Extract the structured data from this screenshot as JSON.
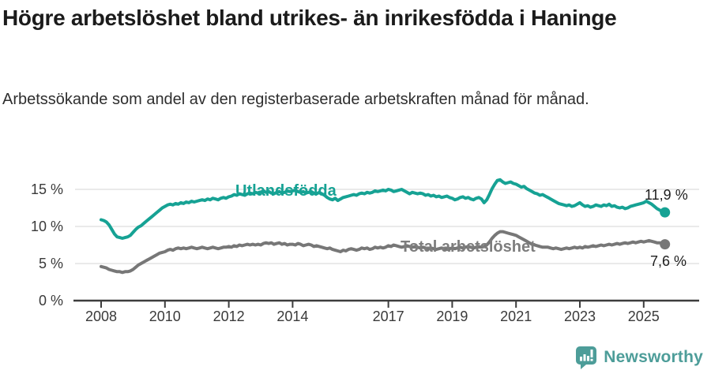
{
  "title": "Högre arbetslöshet bland utrikes- än inrikesfödda i Haninge",
  "subtitle": "Arbetssökande som andel av den registerbaserade arbetskraften månad för månad.",
  "footer": {
    "brand": "Newsworthy"
  },
  "colors": {
    "accent_teal": "#16a294",
    "series_gray": "#777777",
    "brand_teal": "#4d9d99",
    "axis": "#3d3d3d",
    "grid": "#e3e3e3",
    "text_dark": "#1b1b1b"
  },
  "chart_data": {
    "type": "line",
    "title": "Högre arbetslöshet bland utrikes- än inrikesfödda i Haninge",
    "xlabel": "",
    "ylabel": "",
    "x_axis": {
      "start_year": 2008,
      "start_month": 1,
      "frequency": "monthly",
      "last_point": "2025-09",
      "tick_years": [
        2008,
        2010,
        2012,
        2014,
        2017,
        2019,
        2021,
        2023,
        2025
      ]
    },
    "y_axis": {
      "ticks": [
        {
          "value": 0,
          "label": "0 %"
        },
        {
          "value": 5,
          "label": "5 %"
        },
        {
          "value": 10,
          "label": "10 %"
        },
        {
          "value": 15,
          "label": "15 %"
        }
      ],
      "ylim": [
        0,
        17.2
      ],
      "grid": true
    },
    "series": [
      {
        "name": "Utlandsfödda",
        "color": "#16a294",
        "end_label": "11,9 %",
        "end_value": 11.9,
        "values": [
          10.9,
          10.8,
          10.6,
          10.2,
          9.6,
          9.0,
          8.6,
          8.5,
          8.4,
          8.5,
          8.6,
          8.8,
          9.2,
          9.6,
          9.9,
          10.1,
          10.4,
          10.7,
          11.0,
          11.3,
          11.6,
          11.9,
          12.2,
          12.5,
          12.7,
          12.9,
          13.0,
          12.9,
          13.1,
          13.0,
          13.2,
          13.1,
          13.3,
          13.2,
          13.4,
          13.3,
          13.4,
          13.5,
          13.6,
          13.5,
          13.7,
          13.6,
          13.8,
          13.7,
          13.6,
          13.8,
          13.9,
          13.8,
          14.0,
          14.1,
          14.3,
          14.2,
          14.4,
          14.3,
          14.2,
          14.4,
          14.5,
          14.4,
          14.6,
          14.5,
          14.6,
          14.8,
          14.6,
          14.7,
          14.5,
          14.4,
          14.6,
          14.7,
          14.5,
          14.6,
          14.8,
          14.7,
          14.8,
          14.9,
          14.7,
          14.6,
          14.7,
          14.5,
          14.6,
          14.7,
          14.5,
          14.4,
          14.6,
          14.4,
          14.2,
          13.9,
          13.7,
          13.6,
          13.8,
          13.5,
          13.7,
          13.9,
          14.0,
          14.1,
          14.2,
          14.3,
          14.2,
          14.4,
          14.5,
          14.4,
          14.6,
          14.5,
          14.6,
          14.8,
          14.7,
          14.8,
          14.9,
          14.8,
          15.0,
          14.9,
          14.7,
          14.8,
          14.9,
          15.0,
          14.8,
          14.6,
          14.4,
          14.6,
          14.5,
          14.4,
          14.5,
          14.4,
          14.2,
          14.3,
          14.1,
          14.2,
          14.0,
          14.1,
          13.9,
          14.0,
          14.1,
          13.9,
          13.8,
          13.6,
          13.7,
          13.9,
          14.0,
          13.8,
          13.9,
          13.7,
          13.6,
          13.8,
          13.9,
          13.7,
          13.2,
          13.6,
          14.3,
          15.1,
          15.7,
          16.2,
          16.3,
          16.0,
          15.8,
          15.9,
          16.0,
          15.8,
          15.7,
          15.5,
          15.3,
          15.4,
          15.1,
          14.9,
          14.7,
          14.5,
          14.4,
          14.2,
          14.3,
          14.1,
          13.9,
          13.7,
          13.5,
          13.3,
          13.1,
          13.0,
          12.9,
          12.8,
          12.9,
          12.7,
          12.8,
          13.0,
          13.2,
          12.9,
          12.7,
          12.8,
          12.6,
          12.7,
          12.9,
          12.8,
          12.7,
          12.9,
          12.8,
          13.0,
          12.7,
          12.8,
          12.6,
          12.5,
          12.6,
          12.4,
          12.5,
          12.7,
          12.8,
          12.9,
          13.0,
          13.1,
          13.2,
          13.4,
          13.2,
          13.0,
          12.7,
          12.4,
          12.2,
          12.0,
          11.9
        ]
      },
      {
        "name": "Total arbetslöshet",
        "color": "#777777",
        "end_label": "7,6 %",
        "end_value": 7.6,
        "values": [
          4.6,
          4.5,
          4.4,
          4.2,
          4.1,
          4.0,
          3.9,
          3.9,
          3.8,
          3.9,
          3.9,
          4.0,
          4.2,
          4.5,
          4.8,
          5.0,
          5.2,
          5.4,
          5.6,
          5.8,
          6.0,
          6.2,
          6.4,
          6.5,
          6.6,
          6.8,
          6.9,
          6.8,
          7.0,
          7.1,
          7.0,
          7.1,
          7.0,
          7.1,
          7.2,
          7.1,
          7.0,
          7.1,
          7.2,
          7.1,
          7.0,
          7.1,
          7.2,
          7.1,
          7.0,
          7.1,
          7.2,
          7.2,
          7.3,
          7.2,
          7.4,
          7.3,
          7.5,
          7.4,
          7.5,
          7.6,
          7.5,
          7.6,
          7.5,
          7.6,
          7.5,
          7.7,
          7.8,
          7.7,
          7.8,
          7.6,
          7.7,
          7.8,
          7.6,
          7.7,
          7.5,
          7.6,
          7.6,
          7.5,
          7.7,
          7.6,
          7.4,
          7.5,
          7.6,
          7.5,
          7.3,
          7.4,
          7.3,
          7.2,
          7.1,
          7.0,
          7.1,
          6.9,
          6.8,
          6.7,
          6.6,
          6.8,
          6.7,
          6.9,
          7.0,
          6.9,
          6.8,
          6.9,
          7.1,
          7.0,
          7.1,
          6.9,
          7.0,
          7.2,
          7.1,
          7.2,
          7.1,
          7.2,
          7.4,
          7.3,
          7.5,
          7.4,
          7.3,
          7.2,
          7.3,
          7.4,
          7.3,
          7.2,
          7.3,
          7.2,
          7.1,
          7.2,
          7.1,
          7.0,
          7.1,
          7.0,
          6.9,
          7.0,
          7.1,
          7.0,
          6.9,
          7.0,
          7.1,
          7.0,
          7.1,
          7.2,
          7.1,
          7.2,
          7.3,
          7.2,
          7.1,
          7.2,
          7.3,
          7.2,
          7.3,
          7.5,
          7.9,
          8.4,
          8.8,
          9.1,
          9.3,
          9.3,
          9.2,
          9.1,
          9.0,
          8.9,
          8.8,
          8.6,
          8.4,
          8.2,
          8.0,
          7.8,
          7.6,
          7.5,
          7.4,
          7.3,
          7.2,
          7.2,
          7.2,
          7.1,
          7.0,
          7.1,
          7.0,
          6.9,
          7.0,
          7.1,
          7.0,
          7.1,
          7.2,
          7.1,
          7.2,
          7.1,
          7.3,
          7.2,
          7.3,
          7.4,
          7.3,
          7.4,
          7.5,
          7.4,
          7.5,
          7.6,
          7.5,
          7.6,
          7.7,
          7.6,
          7.7,
          7.8,
          7.7,
          7.8,
          7.9,
          7.8,
          7.9,
          8.0,
          7.9,
          8.0,
          8.1,
          8.0,
          7.9,
          7.8,
          7.8,
          7.7,
          7.6
        ]
      }
    ],
    "legend_position": "inline-labels"
  }
}
